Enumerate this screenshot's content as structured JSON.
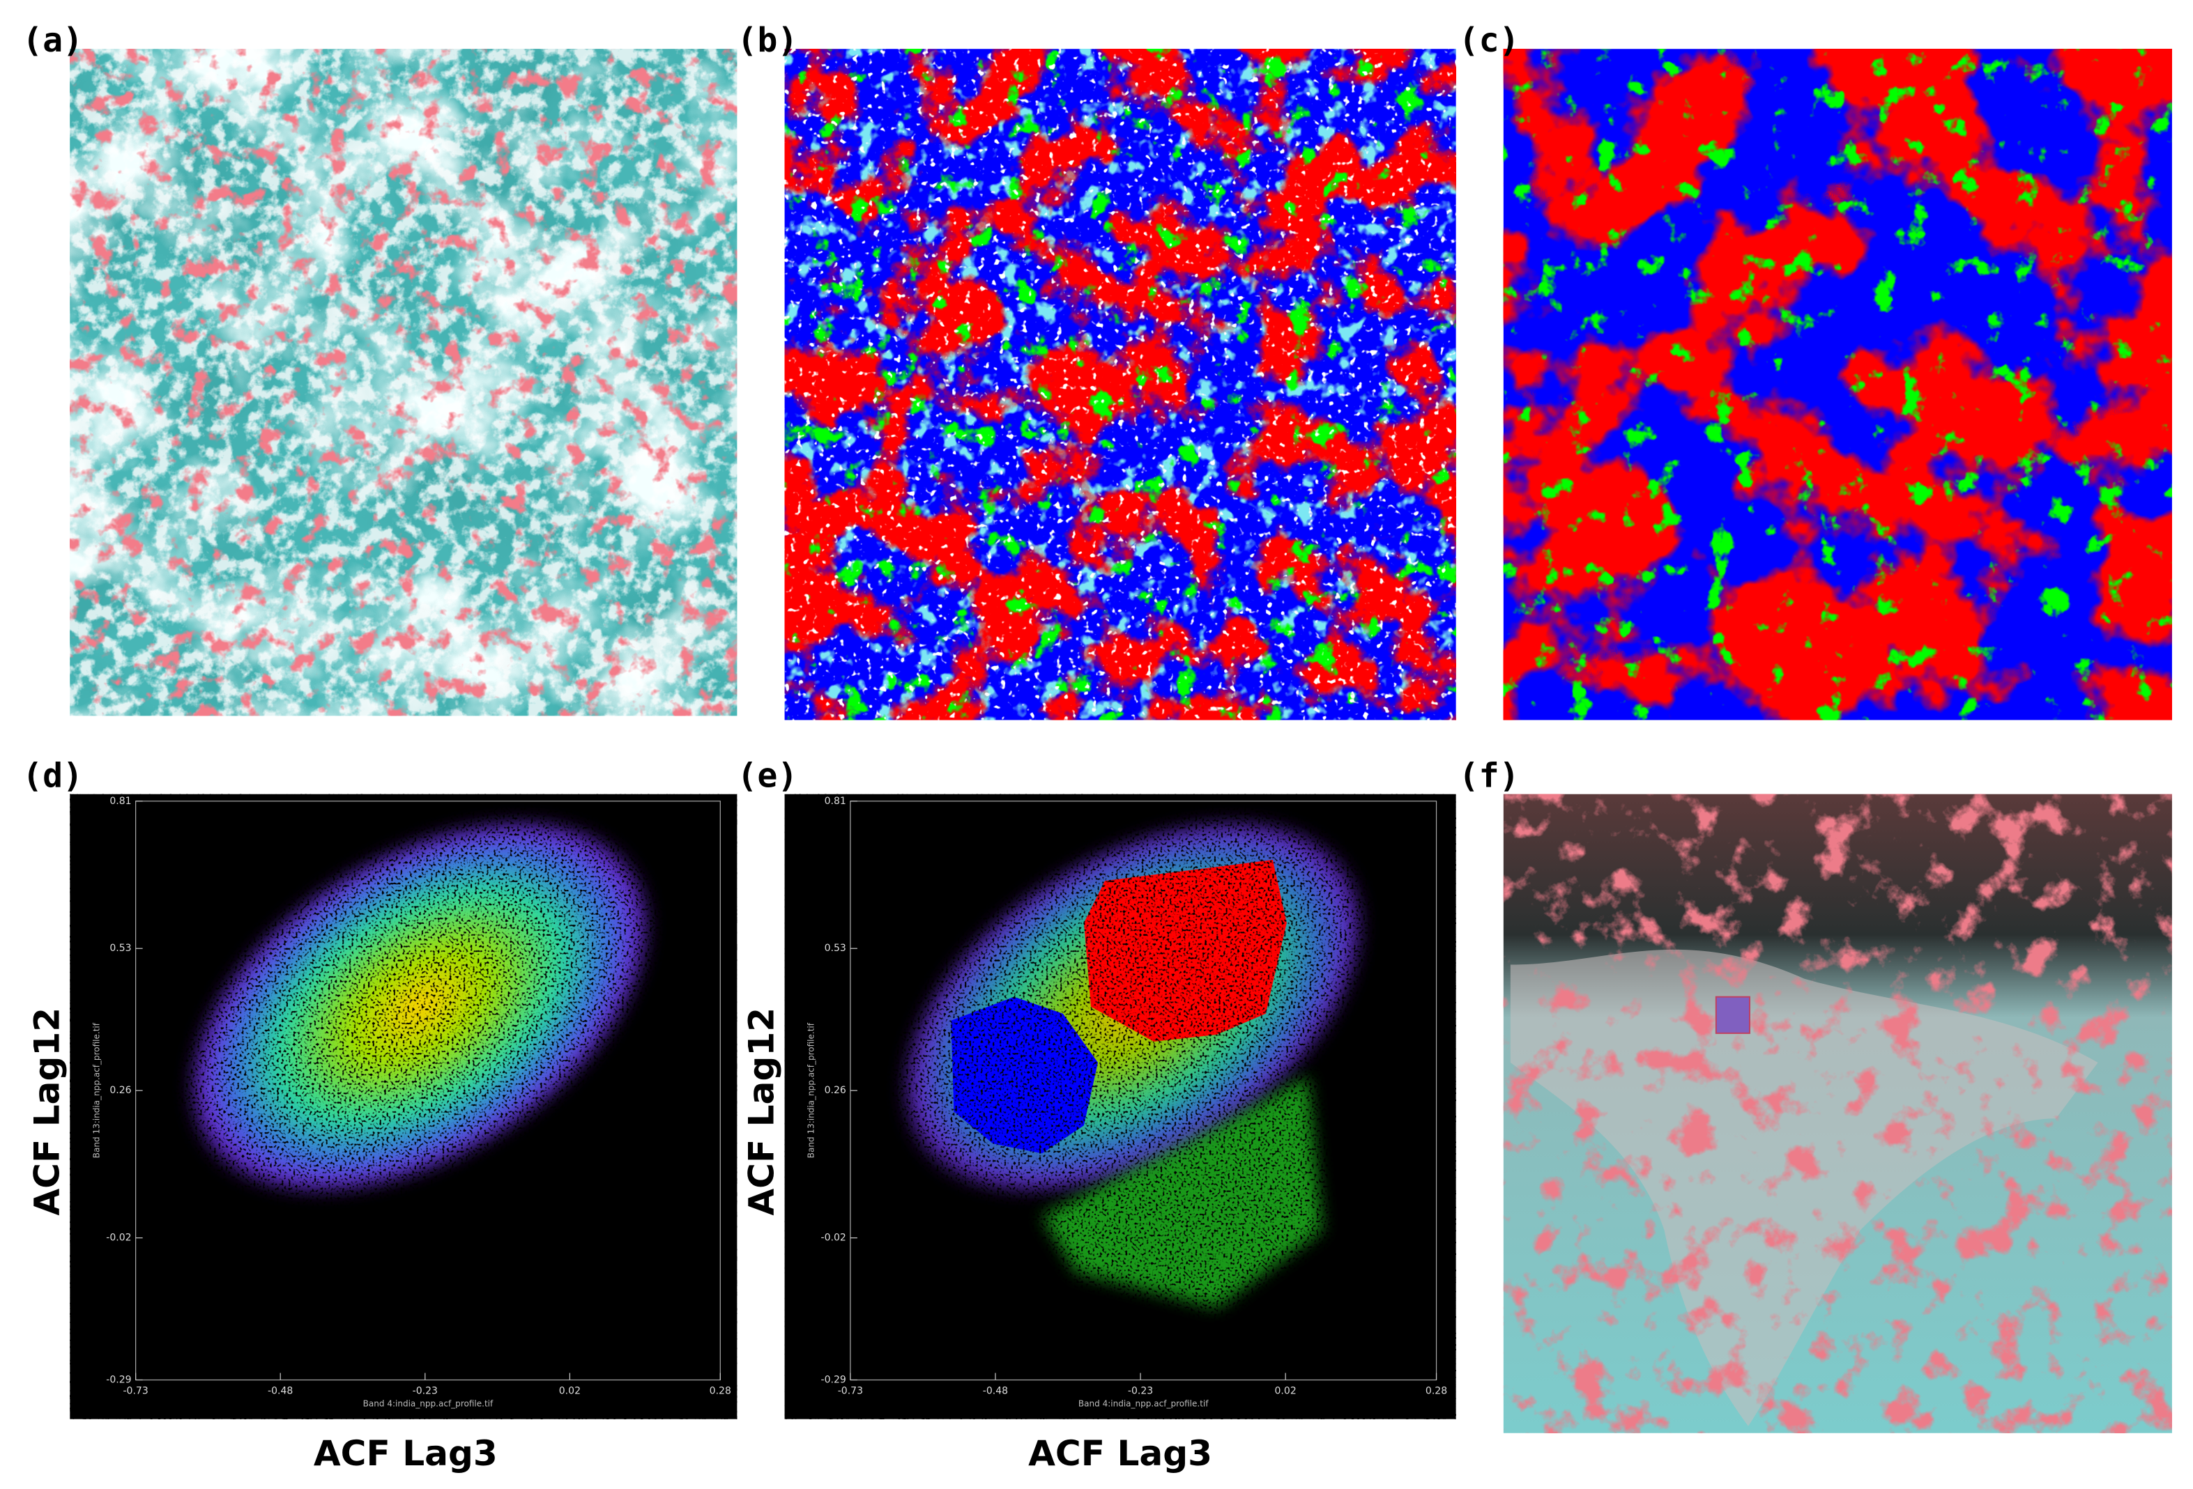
{
  "panels": [
    {
      "label": "(a)"
    },
    {
      "label": "(b)"
    },
    {
      "label": "(c)"
    },
    {
      "label": "(d)",
      "x_label": "ACF Lag3",
      "y_label": "ACF Lag12",
      "x_band": "Band 4:india_npp.acf_profile.tif",
      "y_band": "Band 13:india_npp.acf_profile.tif",
      "xticks": [
        -0.73,
        -0.48,
        -0.23,
        0.02,
        0.28
      ],
      "yticks": [
        -0.29,
        -0.02,
        0.26,
        0.53,
        0.81
      ]
    },
    {
      "label": "(e)",
      "x_label": "ACF Lag3",
      "y_label": "ACF Lag12",
      "x_band": "Band 4:india_npp.acf_profile.tif",
      "y_band": "Band 13:india_npp.acf_profile.tif",
      "xticks": [
        -0.73,
        -0.48,
        -0.23,
        0.02,
        0.28
      ],
      "yticks": [
        -0.29,
        -0.02,
        0.26,
        0.53,
        0.81
      ]
    },
    {
      "label": "(f)"
    }
  ]
}
